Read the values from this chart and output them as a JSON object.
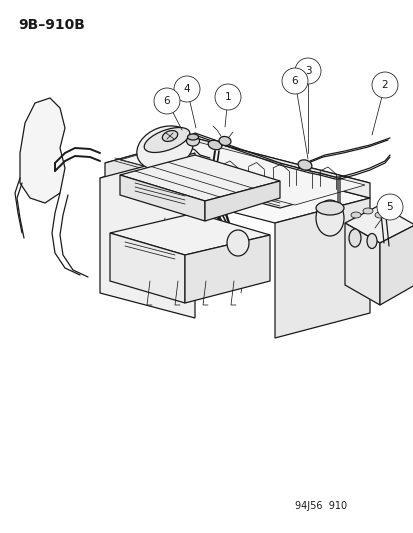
{
  "title_label": "9B–910B",
  "footer_label": "94J56  910",
  "bg_color": "#ffffff",
  "line_color": "#1a1a1a",
  "title_fontsize": 10,
  "footer_fontsize": 7,
  "callout_fontsize": 7.5,
  "callout_circle_r": 0.013,
  "lw_main": 0.9,
  "lw_thin": 0.55,
  "lw_thick": 1.3
}
